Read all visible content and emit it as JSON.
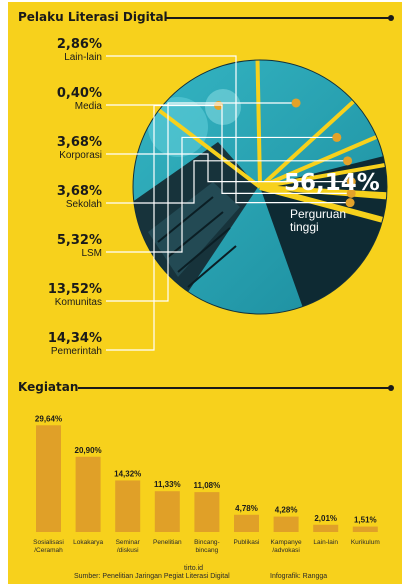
{
  "section1": {
    "title": "Pelaku Literasi Digital"
  },
  "section2": {
    "title": "Kegiatan"
  },
  "chart_data": [
    {
      "type": "pie",
      "title": "Pelaku Literasi Digital",
      "slices": [
        {
          "label": "Perguruan tinggi",
          "value": 56.14,
          "display": "56,14%"
        },
        {
          "label": "Pemerintah",
          "value": 14.34,
          "display": "14,34%"
        },
        {
          "label": "Komunitas",
          "value": 13.52,
          "display": "13,52%"
        },
        {
          "label": "LSM",
          "value": 5.32,
          "display": "5,32%"
        },
        {
          "label": "Sekolah",
          "value": 3.68,
          "display": "3,68%"
        },
        {
          "label": "Korporasi",
          "value": 3.68,
          "display": "3,68%"
        },
        {
          "label": "Media",
          "value": 0.4,
          "display": "0,40%"
        },
        {
          "label": "Lain-lain",
          "value": 2.86,
          "display": "2,86%"
        }
      ]
    },
    {
      "type": "bar",
      "title": "Kegiatan",
      "categories": [
        "Sosialisasi /Ceramah",
        "Lokakarya",
        "Seminar /diskusi",
        "Penelitian",
        "Bincang-bincang",
        "Publikasi",
        "Kampanye /advokasi",
        "Lain-lain",
        "Kurikulum"
      ],
      "category_lines": [
        [
          "Sosialisasi",
          "/Ceramah"
        ],
        [
          "Lokakarya"
        ],
        [
          "Seminar",
          "/diskusi"
        ],
        [
          "Penelitian"
        ],
        [
          "Bincang-",
          "bincang"
        ],
        [
          "Publikasi"
        ],
        [
          "Kampanye",
          "/advokasi"
        ],
        [
          "Lain-lain"
        ],
        [
          "Kurikulum"
        ]
      ],
      "values": [
        29.64,
        20.9,
        14.32,
        11.33,
        11.08,
        4.78,
        4.28,
        2.01,
        1.51
      ],
      "labels": [
        "29,64%",
        "20,90%",
        "14,32%",
        "11,33%",
        "11,08%",
        "4,78%",
        "4,28%",
        "2,01%",
        "1,51%"
      ]
    }
  ],
  "footer": {
    "source": "Sumber: Penelitian Jaringan Pegiat Literasi Digital",
    "site": "tirto.id",
    "credit": "Infografik: Rangga"
  },
  "colors": {
    "background": "#f7d11c",
    "bar": "#e0a028",
    "photo_teal": "#2aa6b8",
    "photo_dark": "#0f2d36",
    "dot": "#e3a22a"
  }
}
